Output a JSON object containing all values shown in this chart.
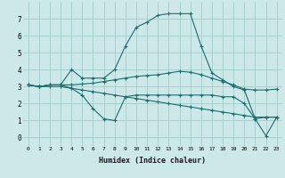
{
  "xlabel": "Humidex (Indice chaleur)",
  "background_color": "#cce8e8",
  "grid_color": "#a8d0d0",
  "line_color": "#1a6e6e",
  "x_ticks": [
    0,
    1,
    2,
    3,
    4,
    5,
    6,
    7,
    8,
    9,
    10,
    11,
    12,
    13,
    14,
    15,
    16,
    17,
    18,
    19,
    20,
    21,
    22,
    23
  ],
  "y_ticks": [
    0,
    1,
    2,
    3,
    4,
    5,
    6,
    7
  ],
  "ylim": [
    -0.5,
    8.0
  ],
  "xlim": [
    -0.5,
    23.5
  ],
  "series": [
    {
      "x": [
        0,
        1,
        2,
        3,
        4,
        5,
        6,
        7,
        8,
        9,
        10,
        11,
        12,
        13,
        14,
        15,
        16,
        17,
        18,
        19,
        20,
        21,
        22,
        23
      ],
      "y": [
        3.1,
        3.0,
        3.1,
        3.1,
        2.9,
        2.5,
        1.7,
        1.1,
        1.0,
        2.4,
        2.5,
        2.5,
        2.5,
        2.5,
        2.5,
        2.5,
        2.5,
        2.5,
        2.4,
        2.4,
        2.0,
        1.1,
        1.2,
        1.2
      ]
    },
    {
      "x": [
        0,
        1,
        2,
        3,
        4,
        5,
        6,
        7,
        8,
        9,
        10,
        11,
        12,
        13,
        14,
        15,
        16,
        17,
        18,
        19,
        20,
        21,
        22,
        23
      ],
      "y": [
        3.1,
        3.0,
        3.1,
        3.1,
        3.1,
        3.15,
        3.2,
        3.3,
        3.4,
        3.5,
        3.6,
        3.65,
        3.7,
        3.8,
        3.9,
        3.85,
        3.7,
        3.5,
        3.3,
        3.1,
        2.85,
        2.8,
        2.8,
        2.85
      ]
    },
    {
      "x": [
        0,
        1,
        2,
        3,
        4,
        5,
        6,
        7,
        8,
        9,
        10,
        11,
        12,
        13,
        14,
        15,
        16,
        17,
        18,
        19,
        20,
        21,
        22,
        23
      ],
      "y": [
        3.1,
        3.0,
        3.0,
        3.0,
        2.9,
        2.8,
        2.7,
        2.6,
        2.5,
        2.4,
        2.3,
        2.2,
        2.1,
        2.0,
        1.9,
        1.8,
        1.7,
        1.6,
        1.5,
        1.4,
        1.3,
        1.2,
        1.2,
        1.2
      ]
    },
    {
      "x": [
        0,
        1,
        2,
        3,
        4,
        5,
        6,
        7,
        8,
        9,
        10,
        11,
        12,
        13,
        14,
        15,
        16,
        17,
        18,
        19,
        20,
        21,
        22,
        23
      ],
      "y": [
        3.1,
        3.0,
        3.1,
        3.1,
        4.0,
        3.5,
        3.5,
        3.5,
        4.0,
        5.4,
        6.5,
        6.8,
        7.2,
        7.3,
        7.3,
        7.3,
        5.4,
        3.8,
        3.4,
        3.0,
        2.8,
        1.1,
        0.1,
        1.2
      ]
    }
  ]
}
